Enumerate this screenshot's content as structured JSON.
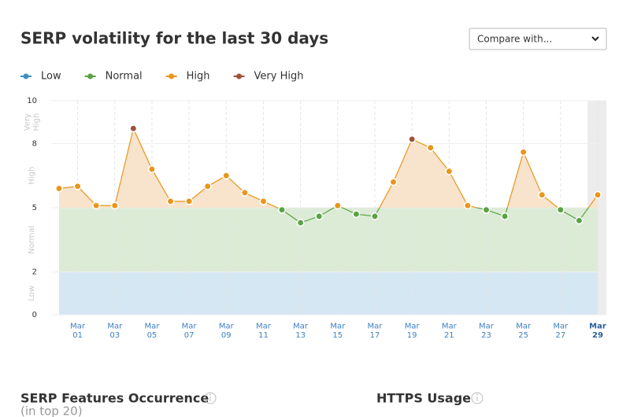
{
  "page": {
    "compare_select": "Compare with...",
    "features_title": "SERP Features Occurrence",
    "features_subtitle": "(in top 20)",
    "https_title": "HTTPS Usage"
  },
  "chart_data": {
    "type": "line",
    "title": "SERP volatility for the last 30 days",
    "bands": [
      {
        "name": "Low",
        "from": 0,
        "to": 2,
        "color": "#3d8fc6",
        "fill": "#d6e7f4"
      },
      {
        "name": "Normal",
        "from": 2,
        "to": 5,
        "color": "#5aa343",
        "fill": "#dcebd6"
      },
      {
        "name": "High",
        "from": 5,
        "to": 8,
        "color": "#e8961c",
        "fill": "#f8e3cc"
      },
      {
        "name": "Very High",
        "from": 8,
        "to": 10,
        "color": "#a0513e",
        "fill": "#f8e3cc"
      }
    ],
    "categories": [
      null,
      "Mar 01",
      null,
      "Mar 03",
      null,
      "Mar 05",
      null,
      "Mar 07",
      null,
      "Mar 09",
      null,
      "Mar 11",
      null,
      "Mar 13",
      null,
      "Mar 15",
      null,
      "Mar 17",
      null,
      "Mar 19",
      null,
      "Mar 21",
      null,
      "Mar 23",
      null,
      "Mar 25",
      null,
      "Mar 27",
      null,
      "Mar 29"
    ],
    "series": [
      {
        "name": "SERP volatility",
        "values": [
          5.9,
          6.0,
          5.1,
          5.1,
          8.7,
          6.8,
          5.3,
          5.3,
          6.0,
          6.5,
          5.7,
          5.3,
          4.9,
          4.3,
          4.6,
          5.1,
          4.7,
          4.6,
          6.2,
          8.2,
          7.8,
          6.7,
          5.1,
          4.9,
          4.6,
          7.6,
          5.6,
          4.9,
          4.4,
          5.6
        ]
      }
    ],
    "ylim": [
      0,
      10
    ],
    "yticks": [
      0,
      2,
      5,
      8,
      10
    ],
    "grid": true
  }
}
